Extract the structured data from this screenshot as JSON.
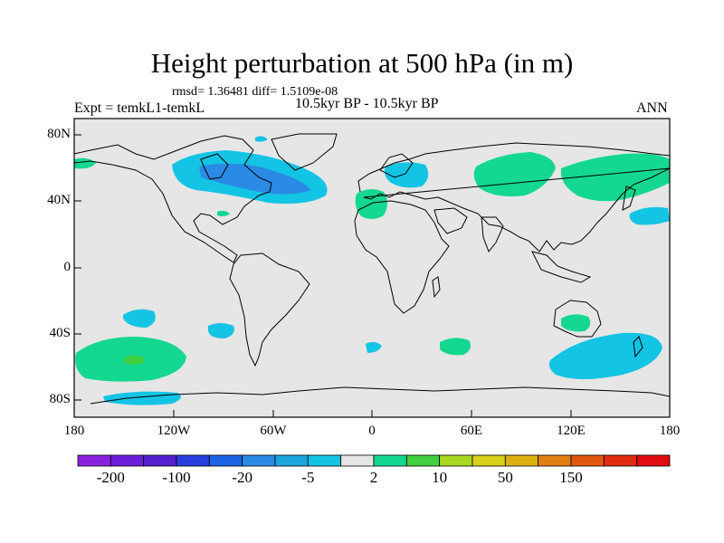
{
  "header": {
    "title": "Height perturbation at 500 hPa (in m)",
    "stats": "rmsd= 1.36481 diff= 1.5109e-08",
    "experiment": "Expt = temkL1-temkL",
    "period": "10.5kyr BP - 10.5kyr BP",
    "season": "ANN"
  },
  "axes": {
    "lat_ticks": [
      "80N",
      "40N",
      "0",
      "40S",
      "80S"
    ],
    "lon_ticks": [
      "180",
      "120W",
      "60W",
      "0",
      "60E",
      "120E",
      "180"
    ]
  },
  "colorbar": {
    "colors": [
      "#8a22e0",
      "#6a1ed8",
      "#5420d0",
      "#2a3ee0",
      "#1e64e6",
      "#2a8ae6",
      "#1ca4dc",
      "#14c4e4",
      "#e6e6e6",
      "#14d890",
      "#40d040",
      "#a8d820",
      "#d6d018",
      "#dcb010",
      "#e08010",
      "#e05810",
      "#e02c10",
      "#e00c10"
    ],
    "labels": [
      "-200",
      "-100",
      "-20",
      "-5",
      "2",
      "10",
      "50",
      "150"
    ]
  },
  "map": {
    "background": "#e6e6e6",
    "positive_color": "#14d890",
    "negative_color": "#14c4e4",
    "stronger_negative_color": "#2a8ae6"
  }
}
